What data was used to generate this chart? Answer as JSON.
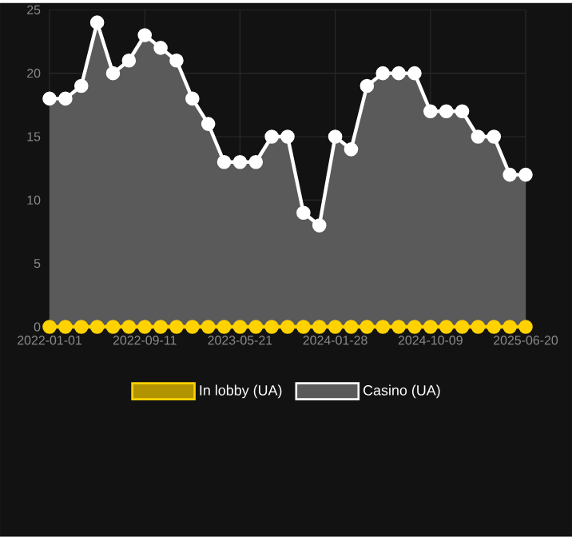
{
  "chart_data": {
    "type": "area",
    "categories": [
      "2022-01-01",
      null,
      null,
      null,
      null,
      null,
      "2022-09-11",
      null,
      null,
      null,
      null,
      null,
      "2023-05-21",
      null,
      null,
      null,
      null,
      null,
      "2024-01-28",
      null,
      null,
      null,
      null,
      null,
      "2024-10-09",
      null,
      null,
      null,
      null,
      null,
      "2025-06-20"
    ],
    "series": [
      {
        "name": "In lobby (UA)",
        "type": "line",
        "color": "#ffd200",
        "values": [
          0,
          0,
          0,
          0,
          0,
          0,
          0,
          0,
          0,
          0,
          0,
          0,
          0,
          0,
          0,
          0,
          0,
          0,
          0,
          0,
          0,
          0,
          0,
          0,
          0,
          0,
          0,
          0,
          0,
          0,
          0
        ]
      },
      {
        "name": "Casino (UA)",
        "color": "#ffffff",
        "values": [
          18,
          18,
          19,
          24,
          20,
          21,
          23,
          22,
          21,
          18,
          16,
          13,
          13,
          13,
          15,
          15,
          9,
          8,
          15,
          14,
          19,
          20,
          20,
          20,
          17,
          17,
          17,
          15,
          15,
          12,
          12
        ]
      }
    ],
    "ylim": [
      0,
      25
    ],
    "yticks": [
      0,
      5,
      10,
      15,
      20,
      25
    ],
    "grid": true,
    "legend": "bottom",
    "marker": "circle"
  }
}
